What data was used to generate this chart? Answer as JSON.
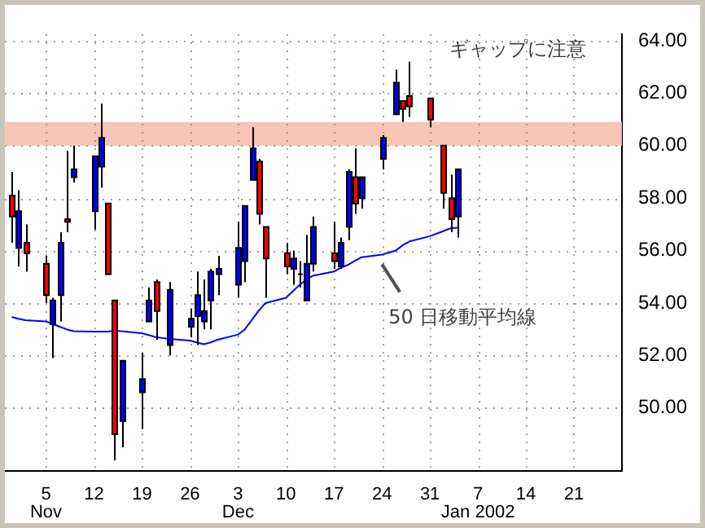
{
  "chart_data": {
    "type": "candlestick",
    "x": [
      "2001-10-31",
      "2001-11-01",
      "2001-11-02",
      "2001-11-05",
      "2001-11-06",
      "2001-11-07",
      "2001-11-08",
      "2001-11-09",
      "2001-11-12",
      "2001-11-13",
      "2001-11-14",
      "2001-11-15",
      "2001-11-16",
      "2001-11-19",
      "2001-11-20",
      "2001-11-21",
      "2001-11-23",
      "2001-11-26",
      "2001-11-27",
      "2001-11-28",
      "2001-11-29",
      "2001-11-30",
      "2001-12-03",
      "2001-12-04",
      "2001-12-05",
      "2001-12-06",
      "2001-12-07",
      "2001-12-10",
      "2001-12-11",
      "2001-12-12",
      "2001-12-13",
      "2001-12-14",
      "2001-12-17",
      "2001-12-18",
      "2001-12-19",
      "2001-12-20",
      "2001-12-21",
      "2001-12-24",
      "2001-12-26",
      "2001-12-27",
      "2001-12-28",
      "2001-12-31",
      "2002-01-02",
      "2002-01-03",
      "2002-01-04"
    ],
    "ohlc": [
      [
        58.1,
        59.0,
        56.3,
        57.3
      ],
      [
        56.1,
        58.3,
        55.4,
        57.5
      ],
      [
        56.3,
        57.0,
        55.2,
        55.9
      ],
      [
        55.5,
        55.8,
        54.0,
        54.3
      ],
      [
        53.2,
        54.2,
        51.9,
        54.1
      ],
      [
        54.3,
        56.7,
        53.3,
        56.3
      ],
      [
        57.2,
        59.8,
        56.7,
        57.1
      ],
      [
        58.8,
        60.0,
        58.6,
        59.1
      ],
      [
        57.5,
        59.6,
        56.8,
        59.6
      ],
      [
        59.2,
        61.6,
        58.4,
        60.3
      ],
      [
        57.8,
        57.8,
        55.1,
        55.1
      ],
      [
        54.1,
        54.1,
        48.0,
        49.0
      ],
      [
        49.5,
        51.8,
        48.5,
        51.8
      ],
      [
        50.6,
        52.1,
        49.2,
        51.1
      ],
      [
        53.3,
        54.6,
        53.3,
        54.1
      ],
      [
        54.8,
        54.9,
        52.6,
        53.7
      ],
      [
        52.4,
        54.8,
        52.0,
        54.5
      ],
      [
        53.1,
        53.8,
        52.7,
        53.4
      ],
      [
        53.5,
        55.2,
        52.4,
        54.3
      ],
      [
        53.3,
        54.9,
        53.0,
        53.7
      ],
      [
        54.1,
        55.3,
        53.0,
        55.2
      ],
      [
        55.1,
        55.8,
        54.3,
        55.3
      ],
      [
        54.7,
        57.1,
        54.2,
        56.1
      ],
      [
        55.6,
        57.7,
        54.8,
        57.7
      ],
      [
        58.7,
        60.7,
        58.7,
        59.9
      ],
      [
        59.4,
        59.5,
        57.0,
        57.4
      ],
      [
        56.9,
        56.9,
        54.2,
        55.7
      ],
      [
        55.9,
        56.3,
        55.1,
        55.4
      ],
      [
        55.3,
        56.0,
        54.7,
        55.7
      ],
      [
        55.1,
        55.6,
        54.6,
        55.1
      ],
      [
        54.1,
        56.6,
        54.1,
        55.5
      ],
      [
        55.5,
        57.3,
        55.2,
        56.9
      ],
      [
        55.9,
        57.1,
        55.3,
        55.6
      ],
      [
        55.4,
        56.5,
        55.3,
        56.3
      ],
      [
        56.9,
        59.1,
        56.4,
        59.0
      ],
      [
        58.8,
        59.9,
        57.4,
        57.8
      ],
      [
        58.0,
        58.8,
        57.6,
        58.8
      ],
      [
        59.5,
        60.4,
        59.1,
        60.3
      ],
      [
        61.2,
        62.9,
        61.2,
        62.4
      ],
      [
        61.7,
        61.7,
        60.9,
        61.4
      ],
      [
        61.9,
        63.2,
        61.1,
        61.5
      ],
      [
        61.8,
        61.8,
        60.7,
        61.0
      ],
      [
        60.0,
        60.0,
        57.6,
        58.2
      ],
      [
        58.0,
        58.9,
        56.7,
        57.2
      ],
      [
        57.3,
        59.1,
        56.5,
        59.1
      ]
    ],
    "colors": [
      "#ff0000",
      "#0000ff",
      "#ff0000",
      "#ff0000",
      "#0000ff",
      "#0000ff",
      "#ff0000",
      "#0000ff",
      "#0000ff",
      "#0000ff",
      "#ff0000",
      "#ff0000",
      "#0000ff",
      "#0000ff",
      "#0000ff",
      "#ff0000",
      "#0000ff",
      "#0000ff",
      "#0000ff",
      "#0000ff",
      "#0000ff",
      "#0000ff",
      "#0000ff",
      "#0000ff",
      "#0000ff",
      "#ff0000",
      "#ff0000",
      "#ff0000",
      "#0000ff",
      "#000000",
      "#0000ff",
      "#0000ff",
      "#ff0000",
      "#0000ff",
      "#0000ff",
      "#ff0000",
      "#0000ff",
      "#0000ff",
      "#0000ff",
      "#ff0000",
      "#ff0000",
      "#ff0000",
      "#ff0000",
      "#ff0000",
      "#0000ff"
    ],
    "series": [
      {
        "type": "line",
        "name": "50 日移動平均線",
        "color": "#0000ff",
        "values": [
          53.47,
          53.4,
          53.35,
          53.3,
          53.2,
          53.1,
          53.0,
          52.93,
          52.91,
          52.91,
          52.91,
          52.95,
          52.93,
          52.85,
          52.78,
          52.7,
          52.63,
          52.57,
          52.5,
          52.43,
          52.5,
          52.6,
          52.8,
          53.0,
          53.35,
          53.7,
          54.0,
          54.2,
          54.45,
          54.7,
          54.9,
          55.05,
          55.2,
          55.35,
          55.45,
          55.6,
          55.75,
          55.85,
          56.0,
          56.2,
          56.35,
          56.55,
          56.75,
          56.85,
          56.87
        ]
      }
    ],
    "bands": [
      {
        "axis": "y",
        "from": 60,
        "to": 60.9,
        "color": "#f8c4b4"
      }
    ],
    "annotations": [
      "ギャップに注意"
    ],
    "xlim": [
      "2001-10-30",
      "2002-01-28"
    ],
    "xticks": [
      {
        "value": "2001-11-05",
        "label": "5\nNov"
      },
      {
        "value": "2001-11-12",
        "label": "12"
      },
      {
        "value": "2001-11-19",
        "label": "19"
      },
      {
        "value": "2001-11-26",
        "label": "26"
      },
      {
        "value": "2001-12-03",
        "label": "3\nDec"
      },
      {
        "value": "2001-12-10",
        "label": "10"
      },
      {
        "value": "2001-12-17",
        "label": "17"
      },
      {
        "value": "2001-12-24",
        "label": "24"
      },
      {
        "value": "2001-12-31",
        "label": "31"
      },
      {
        "value": "2002-01-07",
        "label": "7\nJan 2002"
      },
      {
        "value": "2002-01-14",
        "label": "14"
      },
      {
        "value": "2002-01-21",
        "label": "21"
      }
    ],
    "ylim": [
      47.6,
      64.25
    ],
    "yticks": [
      {
        "value": 50,
        "label": "50.00"
      },
      {
        "value": 52,
        "label": "52.00"
      },
      {
        "value": 54,
        "label": "54.00"
      },
      {
        "value": 56,
        "label": "56.00"
      },
      {
        "value": 58,
        "label": "58.00"
      },
      {
        "value": 60,
        "label": "60.00"
      },
      {
        "value": 62,
        "label": "62.00"
      },
      {
        "value": 64,
        "label": "64.00"
      }
    ],
    "grid": true,
    "legend": false,
    "marker": "none"
  }
}
